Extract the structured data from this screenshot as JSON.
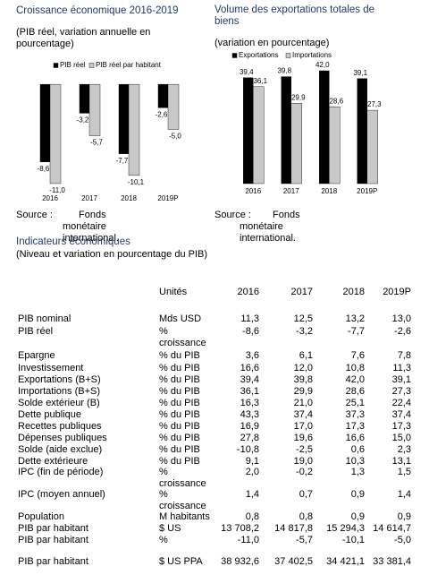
{
  "chart_data": [
    {
      "type": "bar",
      "title": "Croissance économique 2016-2019",
      "subtitle": "(PIB réel, variation annuelle en pourcentage)",
      "categories": [
        "2016",
        "2017",
        "2018",
        "2019P"
      ],
      "series": [
        {
          "name": "PIB réel",
          "color": "#000000",
          "values": [
            -8.6,
            -3.2,
            -7.7,
            -2.6
          ],
          "value_labels": [
            "-8,6",
            "-3,2",
            "-7,7",
            "-2,6"
          ]
        },
        {
          "name": "PIB réel par habitant",
          "color": "#c8c8c8",
          "values": [
            -11.0,
            -5.7,
            -10.1,
            -5.0
          ],
          "value_labels": [
            "-11,0",
            "-5,7",
            "-10,1",
            "-5,0"
          ]
        }
      ],
      "ylim": [
        -12,
        2
      ]
    },
    {
      "type": "bar",
      "title": "Volume des exportations totales de biens",
      "subtitle": "(variation en pourcentage)",
      "categories": [
        "2016",
        "2017",
        "2018",
        "2019P"
      ],
      "series": [
        {
          "name": "Exportations",
          "color": "#000000",
          "values": [
            39.4,
            39.8,
            42.0,
            39.1
          ],
          "value_labels": [
            "39,4",
            "39,8",
            "42,0",
            "39,1"
          ]
        },
        {
          "name": "Importations",
          "color": "#c8c8c8",
          "values": [
            36.1,
            29.9,
            28.6,
            27.3
          ],
          "value_labels": [
            "36,1",
            "29,9",
            "28,6",
            "27,3"
          ]
        }
      ],
      "ylim": [
        0,
        45
      ]
    }
  ],
  "sources": [
    {
      "label": "Source :",
      "text": "Fonds monétaire international."
    },
    {
      "label": "Source :",
      "text": "Fonds monétaire international."
    }
  ],
  "table": {
    "title": "Indicateurs économiques",
    "subtitle": "(Niveau et variation en pourcentage du PIB)",
    "header": [
      "",
      "Unités",
      "2016",
      "2017",
      "2018",
      "2019P"
    ],
    "rows": [
      [
        "PIB nominal",
        "Mds USD",
        "11,3",
        "12,5",
        "13,2",
        "13,0"
      ],
      [
        "PIB réel",
        "% croissance",
        "-8,6",
        "-3,2",
        "-7,7",
        "-2,6"
      ],
      [
        "Epargne",
        "% du PIB",
        "3,6",
        "6,1",
        "7,6",
        "7,8"
      ],
      [
        "Investissement",
        "% du PIB",
        "16,6",
        "12,0",
        "10,8",
        "11,3"
      ],
      [
        "Exportations (B+S)",
        "% du PIB",
        "39,4",
        "39,8",
        "42,0",
        "39,1"
      ],
      [
        "Importations (B+S)",
        "% du PIB",
        "36,1",
        "29,9",
        "28,6",
        "27,3"
      ],
      [
        "Solde extérieur (B)",
        "% du PIB",
        "16,3",
        "21,0",
        "25,1",
        "22,4"
      ],
      [
        "Dette publique",
        "% du PIB",
        "43,3",
        "37,4",
        "37,3",
        "37,4"
      ],
      [
        "Recettes publiques",
        "% du PIB",
        "16,9",
        "17,0",
        "17,3",
        "17,3"
      ],
      [
        "Dépenses publiques",
        "% du PIB",
        "27,8",
        "19,6",
        "16,6",
        "15,0"
      ],
      [
        "Solde (aide exclue)",
        "% du PIB",
        "-10,8",
        "-2,5",
        "0,6",
        "2,3"
      ],
      [
        "Dette extérieure",
        "% du PIB",
        "9,1",
        "19,0",
        "10,3",
        "13,1"
      ],
      [
        "IPC (fin de période)",
        "% croissance",
        "2,0",
        "-0,2",
        "1,3",
        "1,5"
      ],
      [
        "IPC (moyen annuel)",
        "% croissance",
        "1,4",
        "0,7",
        "0,9",
        "1,4"
      ],
      [
        "Population",
        "M habitants",
        "0,8",
        "0,8",
        "0,9",
        "0,9"
      ],
      [
        "PIB par habitant",
        "$ US",
        "13 708,2",
        "14 817,8",
        "15 294,3",
        "14 614,7"
      ],
      [
        "PIB par habitant",
        "%",
        "-11,0",
        "-5,7",
        "-10,1",
        "-5,0"
      ],
      [
        "PIB par habitant",
        "$ US PPA",
        "38 932,6",
        "37 402,5",
        "34 421,1",
        "33 381,4"
      ]
    ]
  }
}
